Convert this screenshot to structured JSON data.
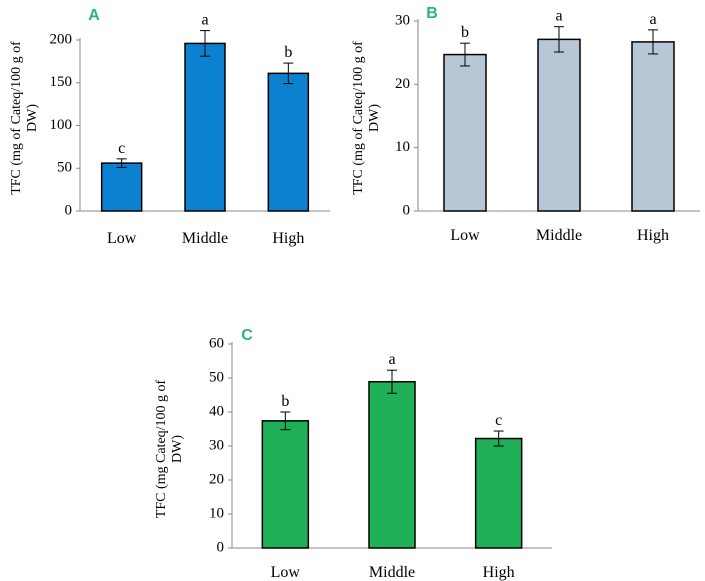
{
  "chart_data": [
    {
      "type": "bar",
      "panel": "A",
      "panel_color": "#2bb673",
      "categories": [
        "Low",
        "Middle",
        "High"
      ],
      "values": [
        56,
        196,
        161
      ],
      "errors": [
        5,
        15,
        12
      ],
      "significance": [
        "c",
        "a",
        "b"
      ],
      "bar_color": "#0b81cf",
      "ylabel_lines": [
        "TFC (mg of Cateq/100 g of",
        "DW)"
      ],
      "ylim": [
        0,
        200
      ],
      "yticks": [
        0,
        50,
        100,
        150,
        200
      ],
      "xlabel": ""
    },
    {
      "type": "bar",
      "panel": "B",
      "panel_color": "#2bb673",
      "categories": [
        "Low",
        "Middle",
        "High"
      ],
      "values": [
        24.7,
        27.1,
        26.7
      ],
      "errors": [
        1.8,
        2.0,
        1.9
      ],
      "significance": [
        "b",
        "a",
        "a"
      ],
      "bar_color": "#b8c7d6",
      "ylabel_lines": [
        "TFC (mg of Cateq/100 g of",
        "DW)"
      ],
      "ylim": [
        0,
        30
      ],
      "yticks": [
        0,
        10,
        20,
        30
      ],
      "xlabel": ""
    },
    {
      "type": "bar",
      "panel": "C",
      "panel_color": "#2bb673",
      "categories": [
        "Low",
        "Middle",
        "High"
      ],
      "values": [
        37.4,
        48.9,
        32.2
      ],
      "errors": [
        2.6,
        3.4,
        2.2
      ],
      "significance": [
        "b",
        "a",
        "c"
      ],
      "bar_color": "#1faf56",
      "ylabel_lines": [
        "TFC (mg Cateq/100 g of",
        "DW)"
      ],
      "ylim": [
        0,
        60
      ],
      "yticks": [
        0,
        10,
        20,
        30,
        40,
        50,
        60
      ],
      "xlabel": ""
    }
  ]
}
